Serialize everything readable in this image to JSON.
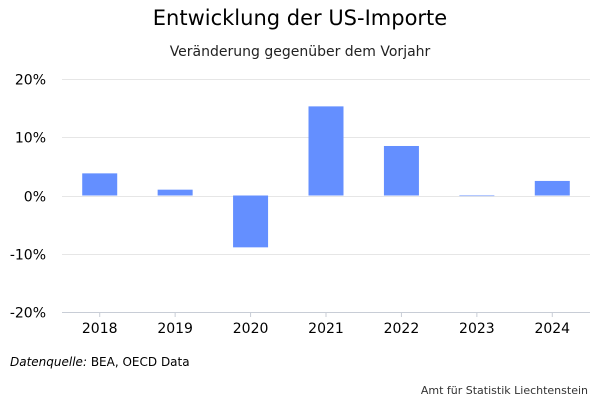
{
  "chart_data": {
    "type": "bar",
    "title": "Entwicklung der US-Importe",
    "subtitle": "Veränderung gegenüber dem Vorjahr",
    "xlabel": "",
    "ylabel": "",
    "categories": [
      "2018",
      "2019",
      "2020",
      "2021",
      "2022",
      "2023",
      "2024"
    ],
    "values": [
      3.8,
      1.0,
      -8.9,
      15.3,
      8.5,
      -0.1,
      2.5
    ],
    "ylim": [
      -20,
      20
    ],
    "y_ticks": [
      20,
      10,
      0,
      -10,
      -20
    ],
    "y_tick_labels": [
      "20%",
      "10%",
      "0%",
      "-10%",
      "-20%"
    ],
    "grid": true,
    "legend": "none",
    "bar_color": "#648fff",
    "grid_color": "#e6e6e6"
  },
  "source": {
    "label": "Datenquelle:",
    "text": "BEA, OECD Data"
  },
  "credit": "Amt für Statistik Liechtenstein"
}
